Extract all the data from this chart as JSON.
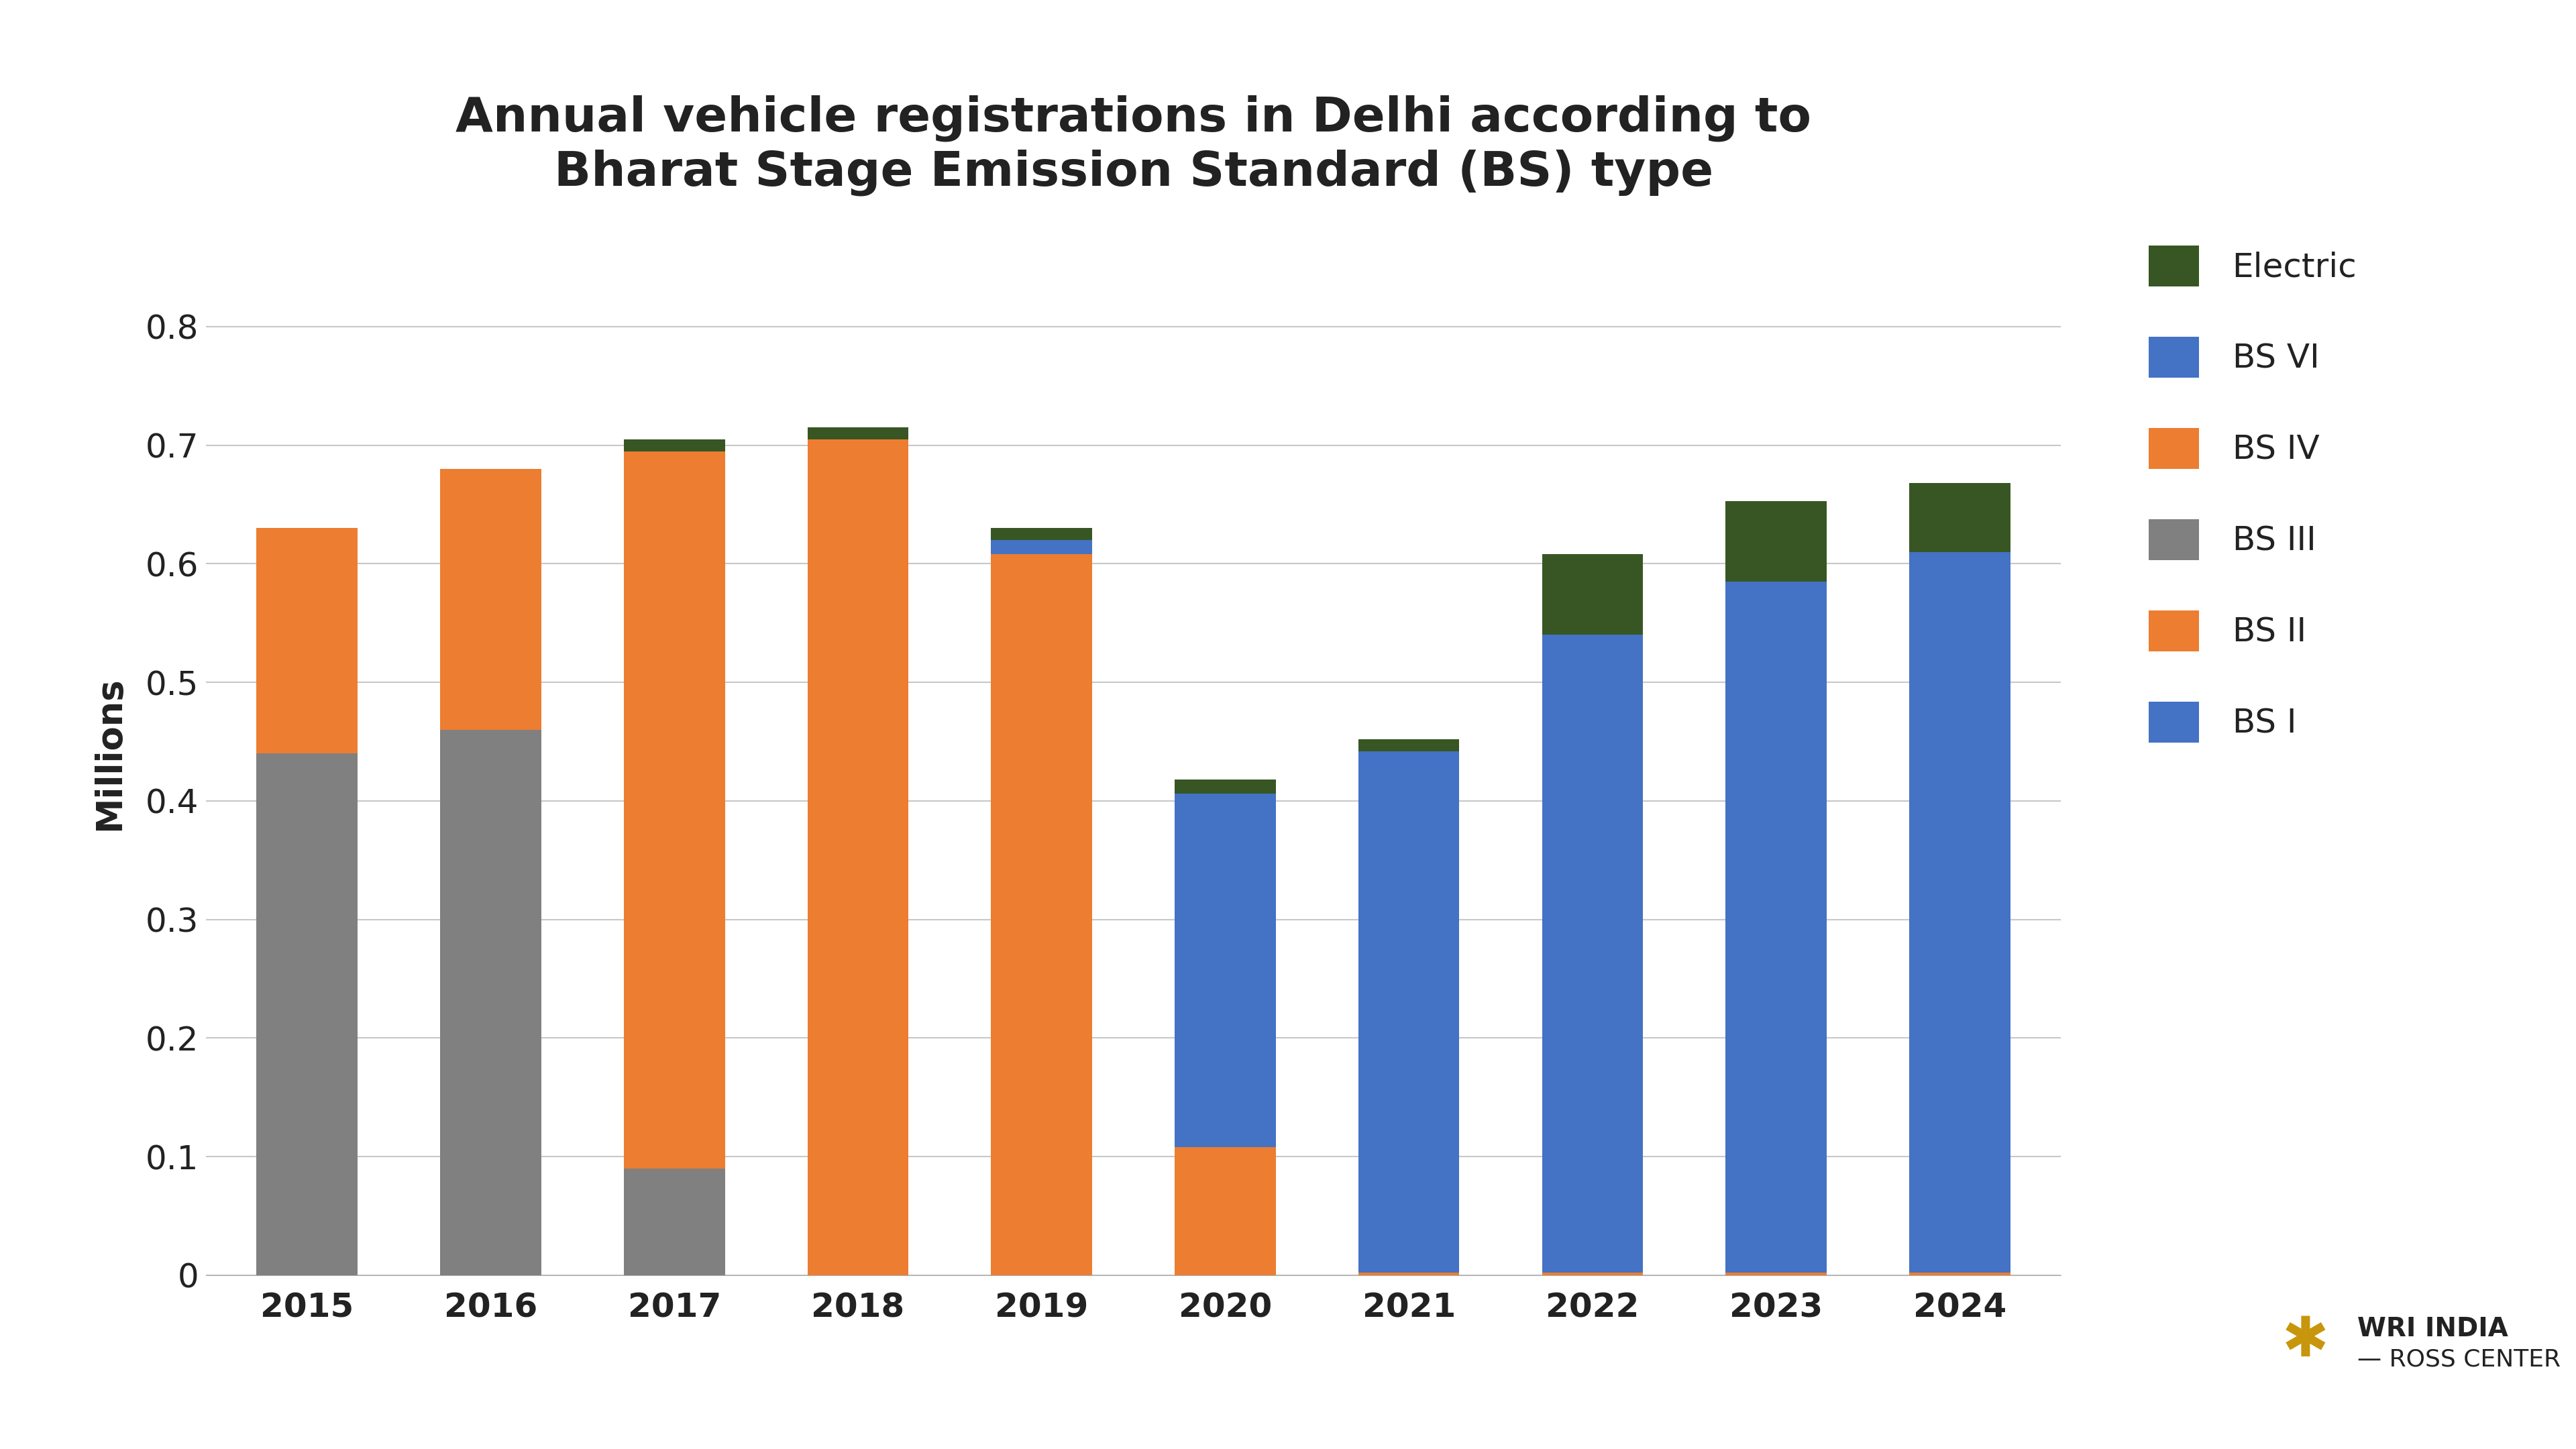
{
  "title": "Annual vehicle registrations in Delhi according to\nBharat Stage Emission Standard (BS) type",
  "ylabel": "Millions",
  "years": [
    2015,
    2016,
    2017,
    2018,
    2019,
    2020,
    2021,
    2022,
    2023,
    2024
  ],
  "bs3": [
    0.44,
    0.46,
    0.09,
    0.0,
    0.0,
    0.0,
    0.0,
    0.0,
    0.0,
    0.0
  ],
  "bs4": [
    0.19,
    0.22,
    0.605,
    0.705,
    0.608,
    0.108,
    0.002,
    0.002,
    0.002,
    0.002
  ],
  "bs6": [
    0.0,
    0.0,
    0.0,
    0.0,
    0.012,
    0.298,
    0.44,
    0.538,
    0.583,
    0.608
  ],
  "electric": [
    0.0,
    0.0,
    0.01,
    0.01,
    0.01,
    0.012,
    0.01,
    0.068,
    0.068,
    0.058
  ],
  "color_bs1": "#4472C4",
  "color_bs2": "#ED7D31",
  "color_bs3": "#808080",
  "color_bs4": "#ED7D31",
  "color_bs6": "#4472C4",
  "color_electric": "#375623",
  "background_color": "#FFFFFF",
  "ylim": [
    0,
    0.88
  ],
  "yticks": [
    0,
    0.1,
    0.2,
    0.3,
    0.4,
    0.5,
    0.6,
    0.7,
    0.8
  ],
  "ytick_labels": [
    "0",
    "0.1",
    "0.2",
    "0.3",
    "0.4",
    "0.5",
    "0.6",
    "0.7",
    "0.8"
  ],
  "bar_width": 0.55,
  "title_fontsize": 52,
  "label_fontsize": 38,
  "tick_fontsize": 36,
  "legend_fontsize": 36
}
